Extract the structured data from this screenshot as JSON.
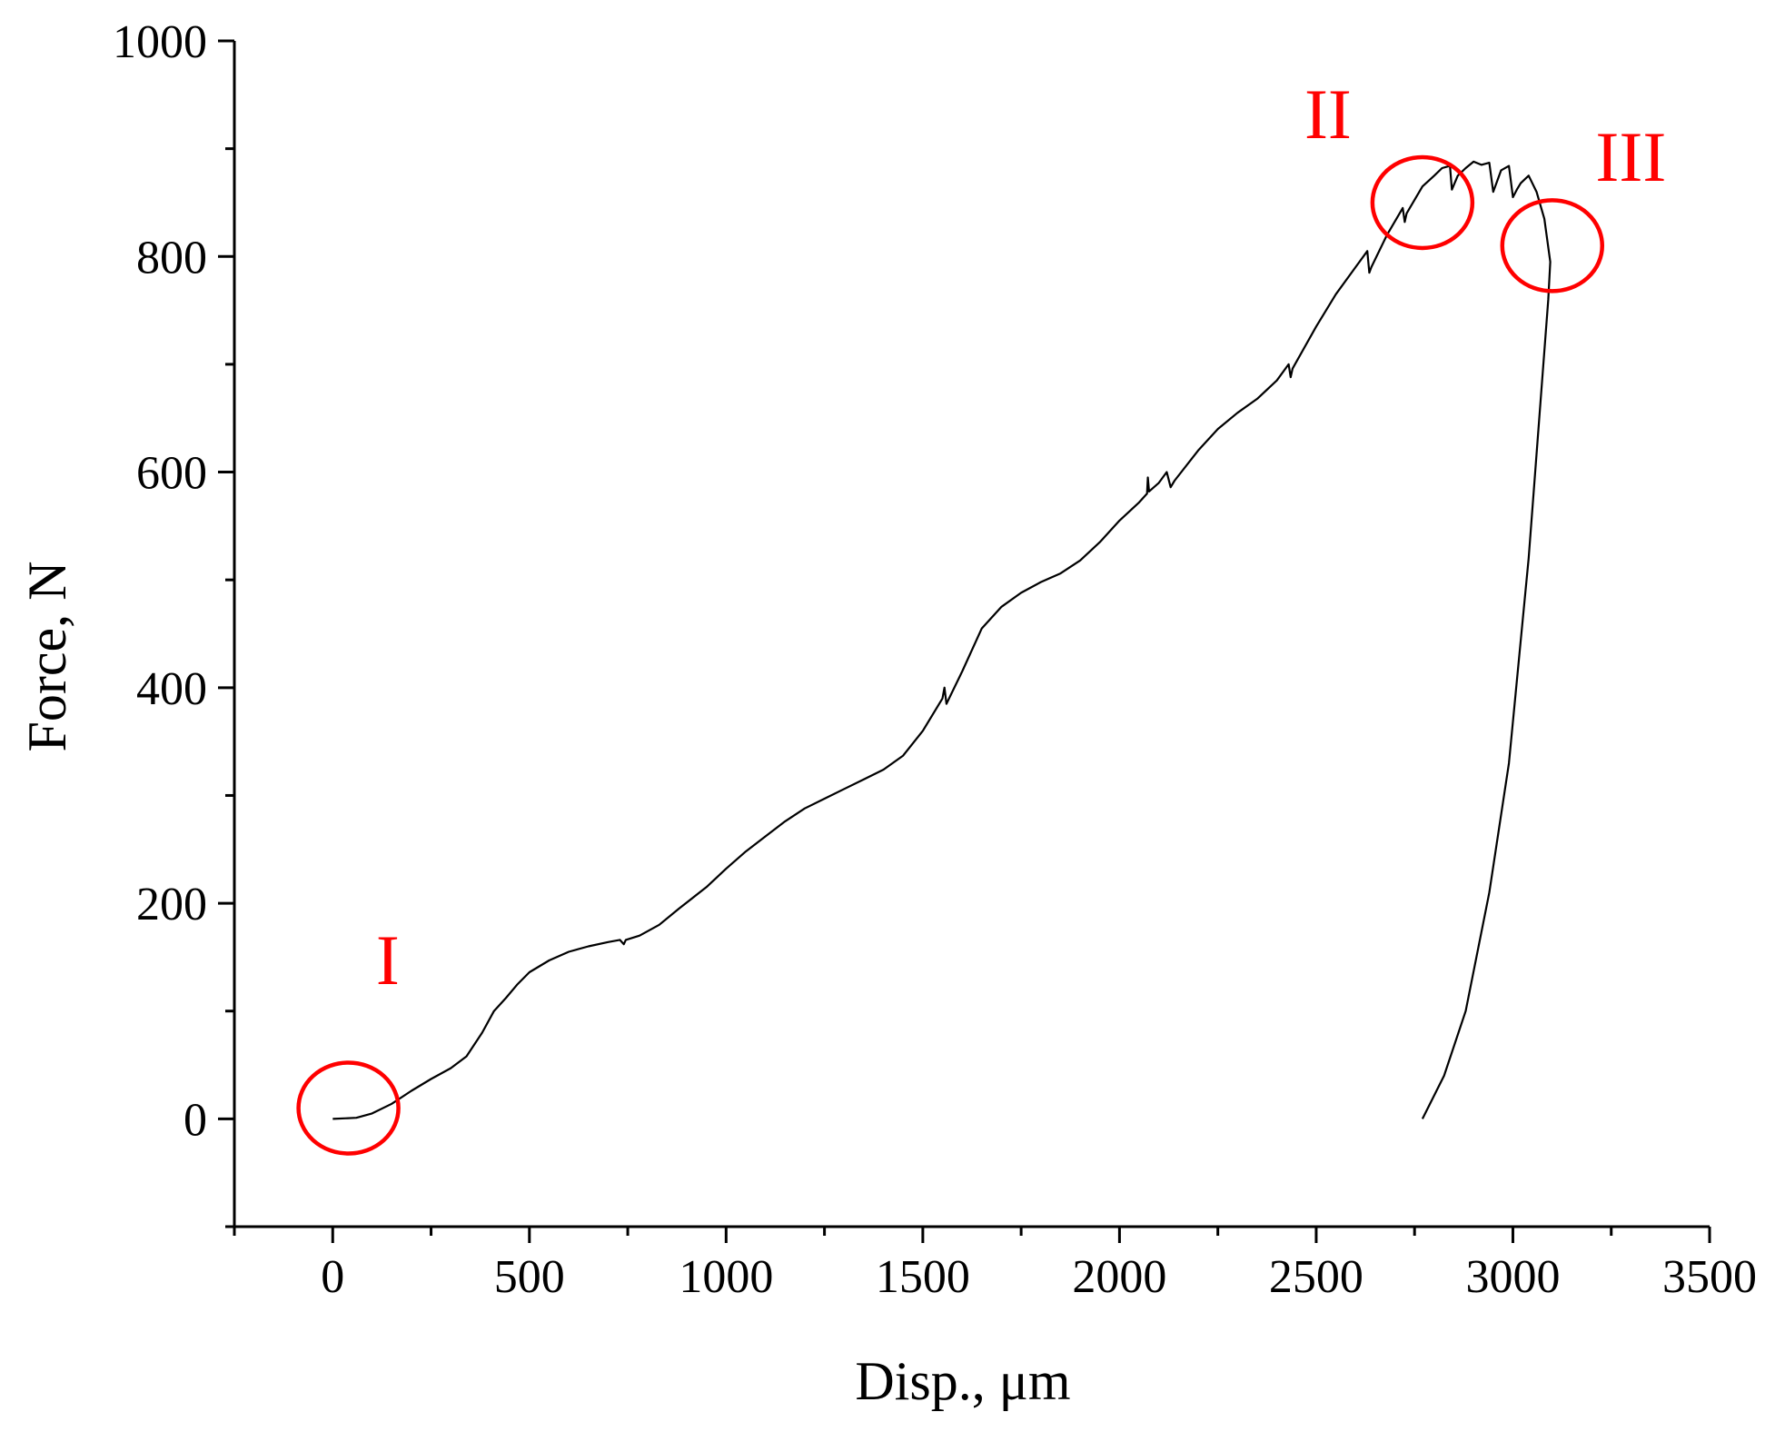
{
  "chart_data": {
    "type": "line",
    "title": "",
    "xlabel": "Disp.,  μm",
    "ylabel": "Force,  N",
    "xlim": [
      -250,
      3500
    ],
    "ylim": [
      -100,
      1000
    ],
    "x_ticks": [
      0,
      500,
      1000,
      1500,
      2000,
      2500,
      3000,
      3500
    ],
    "y_ticks": [
      0,
      200,
      400,
      600,
      800,
      1000
    ],
    "grid": false,
    "series": [
      {
        "color": "#000000",
        "points": [
          [
            0,
            0
          ],
          [
            60,
            1
          ],
          [
            100,
            5
          ],
          [
            150,
            14
          ],
          [
            200,
            26
          ],
          [
            250,
            37
          ],
          [
            300,
            47
          ],
          [
            340,
            58
          ],
          [
            380,
            80
          ],
          [
            410,
            100
          ],
          [
            440,
            112
          ],
          [
            470,
            125
          ],
          [
            500,
            136
          ],
          [
            550,
            147
          ],
          [
            600,
            155
          ],
          [
            650,
            160
          ],
          [
            700,
            164
          ],
          [
            730,
            166
          ],
          [
            740,
            162
          ],
          [
            745,
            166
          ],
          [
            780,
            170
          ],
          [
            830,
            180
          ],
          [
            880,
            195
          ],
          [
            950,
            215
          ],
          [
            1000,
            232
          ],
          [
            1050,
            248
          ],
          [
            1100,
            262
          ],
          [
            1150,
            276
          ],
          [
            1200,
            288
          ],
          [
            1250,
            297
          ],
          [
            1300,
            306
          ],
          [
            1350,
            315
          ],
          [
            1400,
            324
          ],
          [
            1450,
            337
          ],
          [
            1500,
            360
          ],
          [
            1550,
            390
          ],
          [
            1555,
            400
          ],
          [
            1560,
            385
          ],
          [
            1600,
            415
          ],
          [
            1650,
            455
          ],
          [
            1700,
            475
          ],
          [
            1750,
            488
          ],
          [
            1800,
            498
          ],
          [
            1850,
            506
          ],
          [
            1900,
            518
          ],
          [
            1950,
            535
          ],
          [
            2000,
            555
          ],
          [
            2050,
            572
          ],
          [
            2070,
            580
          ],
          [
            2072,
            595
          ],
          [
            2075,
            582
          ],
          [
            2100,
            590
          ],
          [
            2120,
            600
          ],
          [
            2130,
            586
          ],
          [
            2140,
            592
          ],
          [
            2200,
            620
          ],
          [
            2250,
            640
          ],
          [
            2300,
            655
          ],
          [
            2350,
            668
          ],
          [
            2400,
            685
          ],
          [
            2430,
            700
          ],
          [
            2435,
            688
          ],
          [
            2440,
            696
          ],
          [
            2500,
            735
          ],
          [
            2550,
            765
          ],
          [
            2600,
            790
          ],
          [
            2630,
            805
          ],
          [
            2635,
            785
          ],
          [
            2640,
            790
          ],
          [
            2680,
            820
          ],
          [
            2720,
            845
          ],
          [
            2725,
            832
          ],
          [
            2730,
            840
          ],
          [
            2770,
            865
          ],
          [
            2800,
            875
          ],
          [
            2820,
            882
          ],
          [
            2840,
            884
          ],
          [
            2845,
            862
          ],
          [
            2860,
            875
          ],
          [
            2880,
            882
          ],
          [
            2900,
            888
          ],
          [
            2920,
            885
          ],
          [
            2940,
            887
          ],
          [
            2950,
            860
          ],
          [
            2970,
            880
          ],
          [
            2990,
            884
          ],
          [
            3000,
            855
          ],
          [
            3010,
            862
          ],
          [
            3020,
            868
          ],
          [
            3040,
            875
          ],
          [
            3060,
            860
          ],
          [
            3080,
            835
          ],
          [
            3095,
            795
          ],
          [
            3090,
            760
          ],
          [
            3040,
            520
          ],
          [
            2990,
            330
          ],
          [
            2940,
            210
          ],
          [
            2880,
            100
          ],
          [
            2825,
            40
          ],
          [
            2770,
            0
          ]
        ]
      }
    ],
    "annotations": [
      {
        "text": "I",
        "color": "#ff0000",
        "circle_center": [
          40,
          10
        ],
        "label_pos": [
          140,
          125
        ]
      },
      {
        "text": "II",
        "color": "#ff0000",
        "circle_center": [
          2770,
          850
        ],
        "label_pos": [
          2530,
          910
        ]
      },
      {
        "text": "III",
        "color": "#ff0000",
        "circle_center": [
          3100,
          810
        ],
        "label_pos": [
          3300,
          870
        ]
      }
    ]
  }
}
